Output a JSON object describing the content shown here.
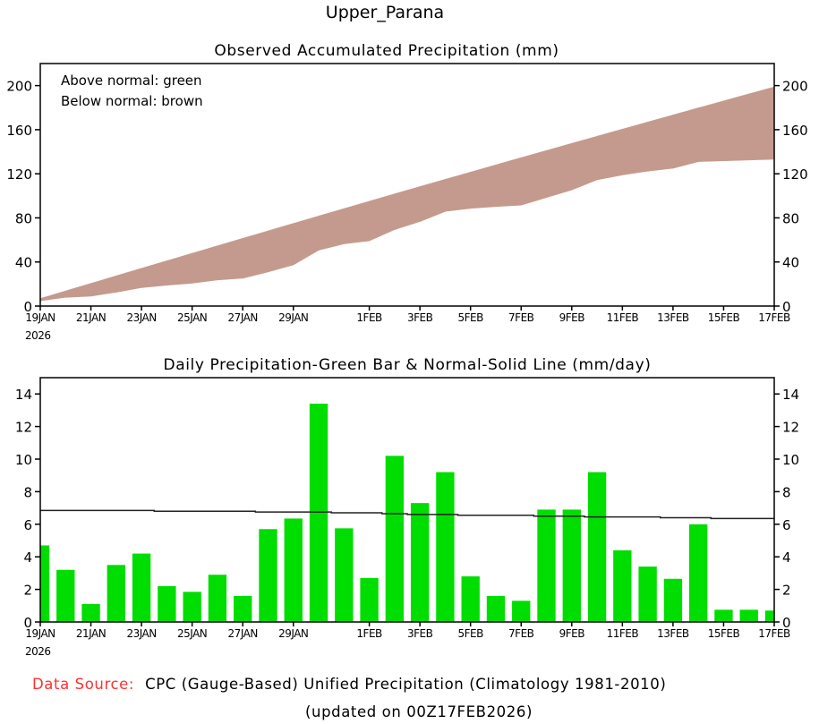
{
  "title": "Upper_Parana",
  "footer": {
    "source_label": "Data Source:",
    "source_text": "CPC (Gauge-Based) Unified Precipitation (Climatology 1981-2010)",
    "updated": "(updated on 00Z17FEB2026)",
    "source_label_color": "#ff3030"
  },
  "chart_data": [
    {
      "type": "area",
      "title": "Observed Accumulated Precipitation (mm)",
      "legend": [
        "Above normal: green",
        "Below normal: brown"
      ],
      "legend_placement": "top-left",
      "colors": {
        "below": "#c49a8e",
        "above": "#00dd00"
      },
      "ylim": [
        0,
        220
      ],
      "yticks": [
        0,
        40,
        80,
        120,
        160,
        200
      ],
      "xticks": [
        "19JAN",
        "21JAN",
        "23JAN",
        "25JAN",
        "27JAN",
        "29JAN",
        "1FEB",
        "3FEB",
        "5FEB",
        "7FEB",
        "9FEB",
        "11FEB",
        "13FEB",
        "15FEB",
        "17FEB"
      ],
      "xtick_days": [
        0,
        2,
        4,
        6,
        8,
        10,
        13,
        15,
        17,
        19,
        21,
        23,
        25,
        27,
        29
      ],
      "x_year": "2026",
      "series_note": "cumulative of daily observed and normal series"
    },
    {
      "type": "bar",
      "title": "Daily Precipitation-Green Bar & Normal-Solid Line (mm/day)",
      "ylim": [
        0,
        15
      ],
      "yticks": [
        0,
        2,
        4,
        6,
        8,
        10,
        12,
        14
      ],
      "xticks": [
        "19JAN",
        "21JAN",
        "23JAN",
        "25JAN",
        "27JAN",
        "29JAN",
        "1FEB",
        "3FEB",
        "5FEB",
        "7FEB",
        "9FEB",
        "11FEB",
        "13FEB",
        "15FEB",
        "17FEB"
      ],
      "xtick_days": [
        0,
        2,
        4,
        6,
        8,
        10,
        13,
        15,
        17,
        19,
        21,
        23,
        25,
        27,
        29
      ],
      "x_year": "2026",
      "bar_color": "#00dd00",
      "observed": [
        4.7,
        3.2,
        1.1,
        3.5,
        4.2,
        2.2,
        1.85,
        2.9,
        1.6,
        5.7,
        6.35,
        13.4,
        5.75,
        2.7,
        10.2,
        7.3,
        9.2,
        2.8,
        1.6,
        1.3,
        6.9,
        6.9,
        9.2,
        4.4,
        3.4,
        2.65,
        6.0,
        0.75,
        0.75,
        0.7
      ],
      "normal": [
        6.85,
        6.85,
        6.85,
        6.85,
        6.85,
        6.8,
        6.8,
        6.8,
        6.8,
        6.75,
        6.75,
        6.75,
        6.7,
        6.7,
        6.65,
        6.6,
        6.6,
        6.55,
        6.55,
        6.55,
        6.5,
        6.5,
        6.45,
        6.45,
        6.45,
        6.4,
        6.4,
        6.35,
        6.35,
        6.35
      ]
    }
  ]
}
